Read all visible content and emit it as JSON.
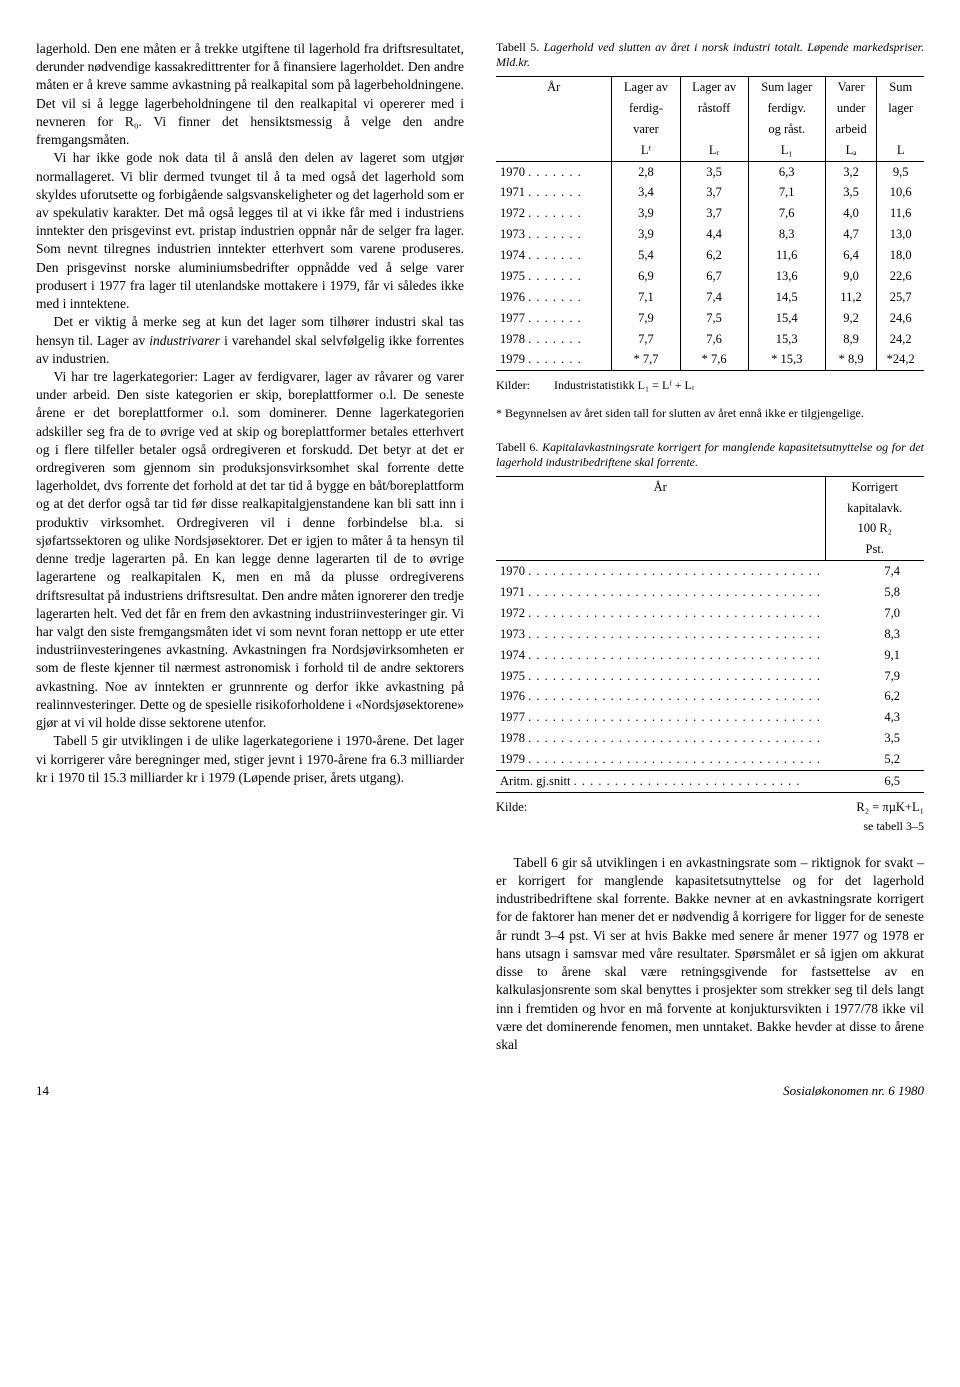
{
  "left": {
    "p1": "lagerhold. Den ene måten er å trekke utgiftene til lagerhold fra driftsresultatet, derunder nødvendige kassakredittrenter for å finansiere lagerholdet. Den andre måten er å kreve samme avkastning på realkapital som på lagerbeholdningene. Det vil si å legge lagerbeholdningene til den realkapital vi opererer med i nevneren for R₀. Vi finner det hensiktsmessig å velge den andre fremgangsmåten.",
    "p2": "Vi har ikke gode nok data til å anslå den delen av lageret som utgjør normallageret. Vi blir dermed tvunget til å ta med også det lagerhold som skyldes uforutsette og forbigående salgsvanskeligheter og det lagerhold som er av spekulativ karakter. Det må også legges til at vi ikke får med i industriens inntekter den prisgevinst evt. pristap industrien oppnår når de selger fra lager. Som nevnt tilregnes industrien inntekter etterhvert som varene produseres. Den prisgevinst norske aluminiumsbedrifter oppnådde ved å selge varer produsert i 1977 fra lager til utenlandske mottakere i 1979, får vi således ikke med i inntektene.",
    "p3a": "Det er viktig å merke seg at kun det lager som tilhører industri skal tas hensyn til. Lager av ",
    "p3b": "industrivarer",
    "p3c": " i varehandel skal selvfølgelig ikke forrentes av industrien.",
    "p4": "Vi har tre lagerkategorier: Lager av ferdigvarer, lager av råvarer og varer under arbeid. Den siste kategorien er skip, boreplattformer o.l. De seneste årene er det boreplattformer o.l. som dominerer. Denne lagerkategorien adskiller seg fra de to øvrige ved at skip og boreplattformer betales etterhvert og i flere tilfeller betaler også ordregiveren et forskudd. Det betyr at det er ordregiveren som gjennom sin produksjonsvirksomhet skal forrente dette lagerholdet, dvs forrente det forhold at det tar tid å bygge en båt/boreplattform og at det derfor også tar tid før disse realkapitalgjenstandene kan bli satt inn i produktiv virksomhet. Ordregiveren vil i denne forbindelse bl.a. si sjøfartssektoren og ulike Nordsjøsektorer. Det er igjen to måter å ta hensyn til denne tredje lagerarten på. En kan legge denne lagerarten til de to øvrige lagerartene og realkapitalen K, men en må da plusse ordregiverens driftsresultat på industriens driftsresultat. Den andre måten ignorerer den tredje lagerarten helt. Ved det får en frem den avkastning industriinvesteringer gir. Vi har valgt den siste fremgangsmåten idet vi som nevnt foran nettopp er ute etter industriinvesteringenes avkastning. Avkastningen fra Nordsjøvirksomheten er som de fleste kjenner til nærmest astronomisk i forhold til de andre sektorers avkastning. Noe av inntekten er grunnrente og derfor ikke avkastning på realinnvesteringer. Dette og de spesielle risikoforholdene i «Nordsjøsektorene» gjør at vi vil holde disse sektorene utenfor.",
    "p5": "Tabell 5 gir utviklingen i de ulike lagerkategoriene i 1970-årene. Det lager vi korrigerer våre beregninger med, stiger jevnt i 1970-årene fra 6.3 milliarder kr i 1970 til 15.3 milliarder kr i 1979 (Løpende priser, årets utgang)."
  },
  "table5": {
    "caption_lead": "Tabell 5. ",
    "caption_ital": "Lagerhold ved slutten av året i norsk industri totalt. Løpende markedspriser. Mld.kr.",
    "header": {
      "year": "År",
      "c1a": "Lager av",
      "c1b": "ferdig-",
      "c1c": "varer",
      "c1d": "Lᶠ",
      "c2a": "Lager av",
      "c2b": "råstoff",
      "c2c": "",
      "c2d": "Lᵣ",
      "c3a": "Sum lager",
      "c3b": "ferdigv.",
      "c3c": "og råst.",
      "c3d": "L₁",
      "c4a": "Varer",
      "c4b": "under",
      "c4c": "arbeid",
      "c4d": "Lₐ",
      "c5a": "Sum",
      "c5b": "lager",
      "c5c": "",
      "c5d": "L"
    },
    "rows": [
      {
        "year": "1970",
        "c1": "2,8",
        "c2": "3,5",
        "c3": "6,3",
        "c4": "3,2",
        "c5": "9,5"
      },
      {
        "year": "1971",
        "c1": "3,4",
        "c2": "3,7",
        "c3": "7,1",
        "c4": "3,5",
        "c5": "10,6"
      },
      {
        "year": "1972",
        "c1": "3,9",
        "c2": "3,7",
        "c3": "7,6",
        "c4": "4,0",
        "c5": "11,6"
      },
      {
        "year": "1973",
        "c1": "3,9",
        "c2": "4,4",
        "c3": "8,3",
        "c4": "4,7",
        "c5": "13,0"
      },
      {
        "year": "1974",
        "c1": "5,4",
        "c2": "6,2",
        "c3": "11,6",
        "c4": "6,4",
        "c5": "18,0"
      },
      {
        "year": "1975",
        "c1": "6,9",
        "c2": "6,7",
        "c3": "13,6",
        "c4": "9,0",
        "c5": "22,6"
      },
      {
        "year": "1976",
        "c1": "7,1",
        "c2": "7,4",
        "c3": "14,5",
        "c4": "11,2",
        "c5": "25,7"
      },
      {
        "year": "1977",
        "c1": "7,9",
        "c2": "7,5",
        "c3": "15,4",
        "c4": "9,2",
        "c5": "24,6"
      },
      {
        "year": "1978",
        "c1": "7,7",
        "c2": "7,6",
        "c3": "15,3",
        "c4": "8,9",
        "c5": "24,2"
      },
      {
        "year": "1979",
        "c1": "* 7,7",
        "c2": "* 7,6",
        "c3": "* 15,3",
        "c4": "* 8,9",
        "c5": "*24,2"
      }
    ],
    "source_label": "Kilder:",
    "source_text": "Industristatistikk   L₁ = Lᶠ + Lᵣ",
    "footnote": "* Begynnelsen av året siden tall for slutten av året ennå ikke er tilgjengelige."
  },
  "table6": {
    "caption_lead": "Tabell 6. ",
    "caption_ital": "Kapitalavkastningsrate korrigert for manglende kapasitetsutnyttelse og for det lagerhold industribedriftene skal forrente.",
    "header_year": "År",
    "header_val1": "Korrigert",
    "header_val2": "kapitalavk.",
    "header_val3": "100 R₂",
    "header_val4": "Pst.",
    "rows": [
      {
        "year": "1970",
        "val": "7,4"
      },
      {
        "year": "1971",
        "val": "5,8"
      },
      {
        "year": "1972",
        "val": "7,0"
      },
      {
        "year": "1973",
        "val": "8,3"
      },
      {
        "year": "1974",
        "val": "9,1"
      },
      {
        "year": "1975",
        "val": "7,9"
      },
      {
        "year": "1976",
        "val": "6,2"
      },
      {
        "year": "1977",
        "val": "4,3"
      },
      {
        "year": "1978",
        "val": "3,5"
      },
      {
        "year": "1979",
        "val": "5,2"
      }
    ],
    "avg_label": "Aritm. gj.snitt",
    "avg_val": "6,5",
    "source_label": "Kilde:",
    "formula_lhs": "R₂ =",
    "formula_num": "π",
    "formula_den": "µK+L₁",
    "see": "se tabell 3–5"
  },
  "right": {
    "p1": "Tabell 6 gir så utviklingen i en avkastningsrate som – riktignok for svakt – er korrigert for manglende kapasitetsutnyttelse og for det lagerhold industribedriftene skal forrente. Bakke nevner at en avkastningsrate korrigert for de faktorer han mener det er nødvendig å korrigere for ligger for de seneste år rundt 3–4 pst. Vi ser at hvis Bakke med senere år mener 1977 og 1978 er hans utsagn i samsvar med våre resultater. Spørsmålet er så igjen om akkurat disse to årene skal være retningsgivende for fastsettelse av en kalkulasjonsrente som skal benyttes i prosjekter som strekker seg til dels langt inn i fremtiden og hvor en må forvente at konjuktursvikten i 1977/78 ikke vil være det dominerende fenomen, men unntaket. Bakke hevder at disse to årene skal"
  },
  "footer": {
    "page": "14",
    "journal": "Sosialøkonomen nr. 6 1980"
  }
}
